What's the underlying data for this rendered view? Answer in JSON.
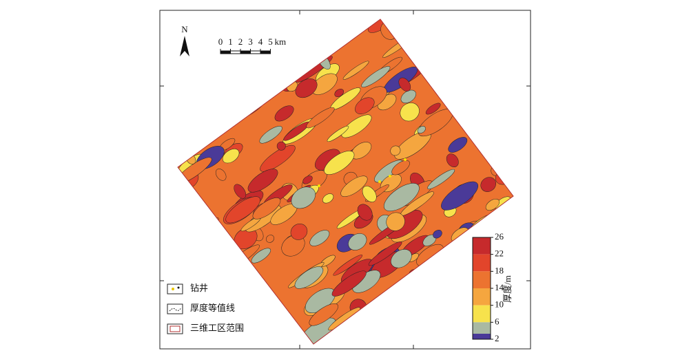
{
  "north": {
    "label": "N"
  },
  "scale_bar": {
    "ticks": [
      0,
      1,
      2,
      3,
      4,
      5
    ],
    "unit": "km"
  },
  "legend": [
    {
      "label": "钻井"
    },
    {
      "label": "厚度等值线"
    },
    {
      "label": "三维工区范围"
    }
  ],
  "colorbar": {
    "label": "厚度/m",
    "lim": [
      2,
      26
    ],
    "ticks": [
      26,
      22,
      18,
      14,
      10,
      6,
      2
    ],
    "colors": [
      "#c62a2c",
      "#e2452b",
      "#ec7330",
      "#f5a63f",
      "#f7e24c",
      "#a9b9a2"
    ],
    "bottom_color": "#4a3a98"
  }
}
